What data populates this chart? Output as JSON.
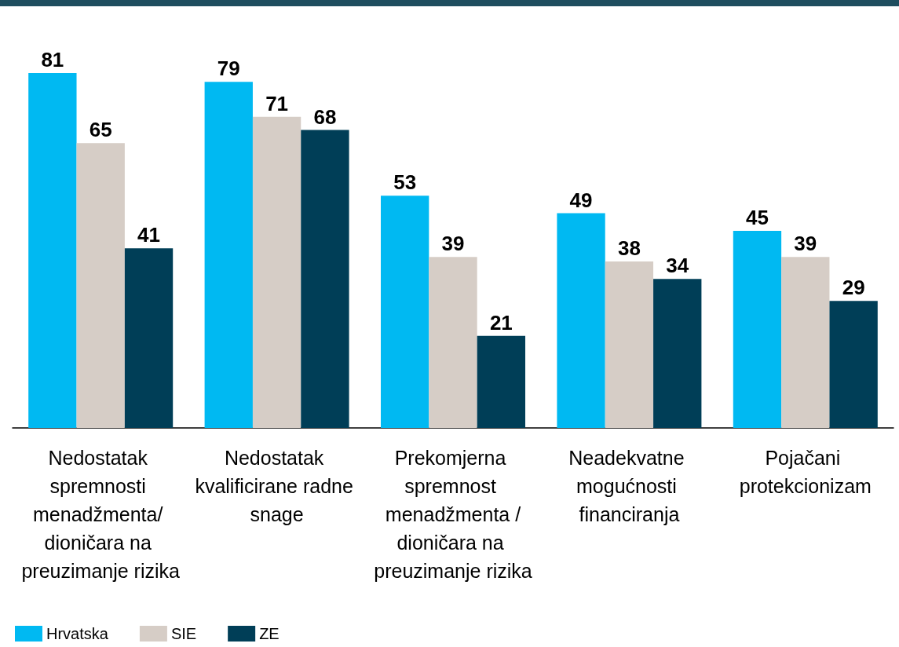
{
  "chart_data": {
    "type": "bar",
    "categories": [
      "Nedostatak spremnosti menadžmenta/ dioničara na preuzimanje rizika",
      "Nedostatak kvalificirane radne snage",
      "Prekomjerna spremnost menadžmenta /dioničara na preuzimanje rizika",
      "Neadekvatne mogućnosti financiranja",
      "Pojačani protekcionizam"
    ],
    "series": [
      {
        "name": "Hrvatska",
        "color": "#00b9f2",
        "values": [
          81,
          79,
          53,
          49,
          45
        ]
      },
      {
        "name": "SIE",
        "color": "#d6cdc6",
        "values": [
          65,
          71,
          39,
          38,
          39
        ]
      },
      {
        "name": "ZE",
        "color": "#003e57",
        "values": [
          41,
          68,
          21,
          34,
          29
        ]
      }
    ],
    "data_labels": true,
    "grid": false,
    "legend": "bottom left"
  }
}
